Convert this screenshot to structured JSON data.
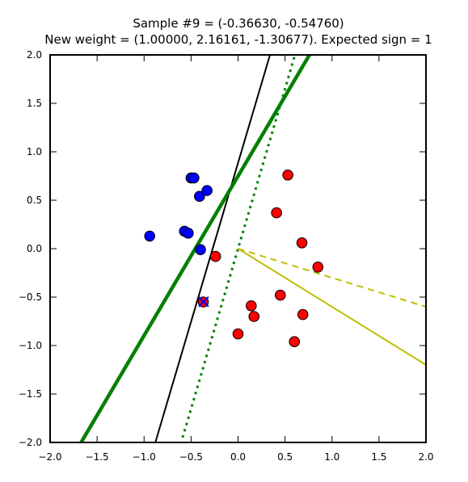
{
  "chart_data": {
    "type": "scatter",
    "title_line1": "Sample #9 = (-0.36630, -0.54760)",
    "title_line2": "New weight = (1.00000, 2.16161, -1.30677). Expected sign = 1",
    "xlim": [
      -2.0,
      2.0
    ],
    "ylim": [
      -2.0,
      2.0
    ],
    "xticks": [
      "−2.0",
      "−1.5",
      "−1.0",
      "−0.5",
      "0.0",
      "0.5",
      "1.0",
      "1.5",
      "2.0"
    ],
    "yticks": [
      "−2.0",
      "−1.5",
      "−1.0",
      "−0.5",
      "0.0",
      "0.5",
      "1.0",
      "1.5",
      "2.0"
    ],
    "xtick_values": [
      -2.0,
      -1.5,
      -1.0,
      -0.5,
      0.0,
      0.5,
      1.0,
      1.5,
      2.0
    ],
    "ytick_values": [
      -2.0,
      -1.5,
      -1.0,
      -0.5,
      0.0,
      0.5,
      1.0,
      1.5,
      2.0
    ],
    "grid": false,
    "series": [
      {
        "color": "#0000ff",
        "points": [
          [
            -0.94,
            0.13
          ],
          [
            -0.57,
            0.18
          ],
          [
            -0.53,
            0.16
          ],
          [
            -0.5,
            0.73
          ],
          [
            -0.47,
            0.73
          ],
          [
            -0.41,
            0.54
          ],
          [
            -0.33,
            0.6
          ],
          [
            -0.4,
            -0.01
          ]
        ]
      },
      {
        "color": "#ff0000",
        "points": [
          [
            0.53,
            0.76
          ],
          [
            0.41,
            0.37
          ],
          [
            0.68,
            0.06
          ],
          [
            0.85,
            -0.19
          ],
          [
            -0.24,
            -0.08
          ],
          [
            -0.37,
            -0.55
          ],
          [
            0.14,
            -0.59
          ],
          [
            0.45,
            -0.48
          ],
          [
            0.69,
            -0.68
          ],
          [
            0.17,
            -0.7
          ],
          [
            0.0,
            -0.88
          ],
          [
            0.6,
            -0.96
          ]
        ]
      }
    ],
    "highlight_sample": {
      "x": -0.3663,
      "y": -0.5476,
      "marker": "x",
      "color": "#ff0000"
    },
    "lines": [
      {
        "color": "#000000",
        "style": "solid",
        "width": 2,
        "points": [
          [
            -0.88,
            -2.0
          ],
          [
            0.34,
            2.0
          ]
        ]
      },
      {
        "color": "#008000",
        "style": "solid",
        "width": 4.5,
        "points": [
          [
            -1.67,
            -2.0
          ],
          [
            0.76,
            2.0
          ]
        ]
      },
      {
        "color": "#008000",
        "style": "dotted",
        "width": 3,
        "points": [
          [
            -0.59,
            -1.95
          ],
          [
            0.6,
            1.98
          ]
        ]
      },
      {
        "color": "#bfbf00",
        "style": "solid",
        "width": 2,
        "points": [
          [
            0.0,
            0.0
          ],
          [
            2.0,
            -1.2
          ]
        ]
      },
      {
        "color": "#bfbf00",
        "style": "dashed",
        "width": 2,
        "points": [
          [
            0.0,
            0.0
          ],
          [
            2.0,
            -0.6
          ]
        ]
      }
    ]
  }
}
